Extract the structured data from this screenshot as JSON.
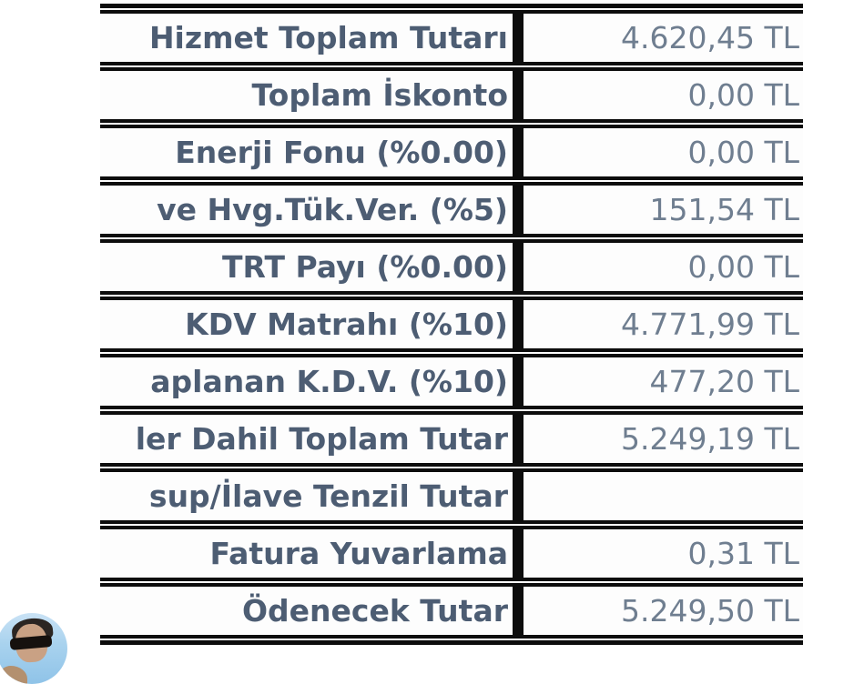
{
  "page": {
    "background": "#ffffff",
    "description": "zoomed-invoice-totals-view"
  },
  "table": {
    "colors": {
      "border": "#0d0d0d",
      "cell_bg": "#fdfdfd",
      "label_text": "#4d5d73",
      "value_text": "#6f7e90"
    },
    "rows": [
      {
        "label": "Hizmet Toplam Tutarı",
        "value": "4.620,45 TL"
      },
      {
        "label": "Toplam İskonto",
        "value": "0,00 TL"
      },
      {
        "label": "Enerji Fonu (%0.00)",
        "value": "0,00 TL"
      },
      {
        "label": "ve Hvg.Tük.Ver. (%5)",
        "value": "151,54 TL"
      },
      {
        "label": "TRT Payı (%0.00)",
        "value": "0,00 TL"
      },
      {
        "label": "KDV Matrahı (%10)",
        "value": "4.771,99 TL"
      },
      {
        "label": "aplanan K.D.V. (%10)",
        "value": "477,20 TL"
      },
      {
        "label": "ler Dahil Toplam Tutar",
        "value": "5.249,19 TL"
      },
      {
        "label": "sup/İlave Tenzil Tutar",
        "value": ""
      },
      {
        "label": "Fatura Yuvarlama",
        "value": "0,31 TL"
      },
      {
        "label": "Ödenecek Tutar",
        "value": "5.249,50 TL"
      }
    ]
  },
  "overlay": {
    "avatar": {
      "name": "presenter-webcam-avatar",
      "bg_color": "#a8d2ee"
    }
  }
}
